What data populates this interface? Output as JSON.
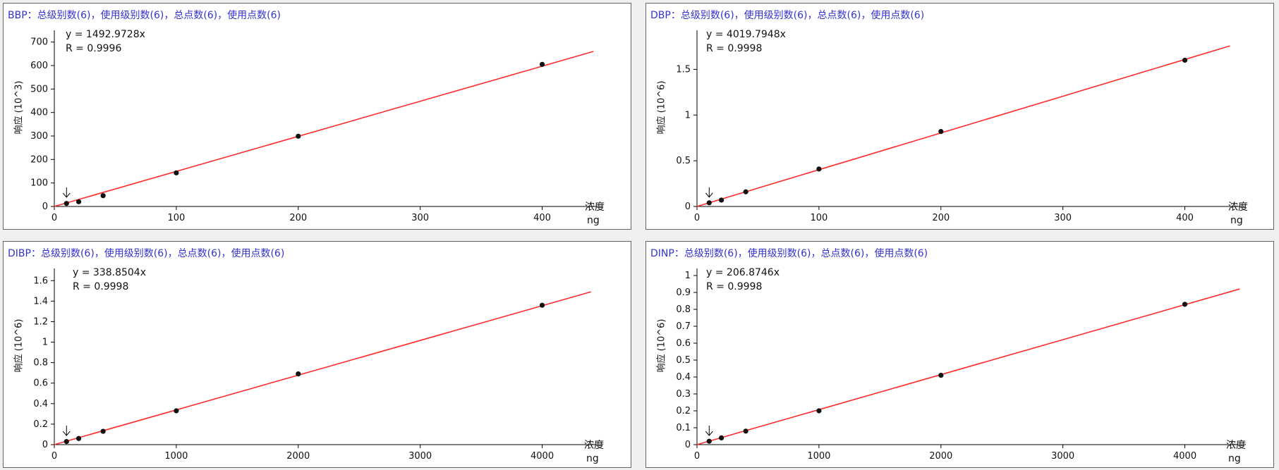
{
  "colors": {
    "fit_line": "#ff2a2a",
    "point": "#111111",
    "title": "#3333cc",
    "axis": "#000000"
  },
  "chart_data": [
    {
      "type": "scatter",
      "title": "BBP：总级别数(6)，使用级别数(6)，总点数(6)，使用点数(6)",
      "equation": "y = 1492.9728x",
      "r_value": "R = 0.9996",
      "ylabel": "响应 (10^3)",
      "xlabel": "浓度",
      "xunit": "ng",
      "xlim": [
        0,
        450
      ],
      "ylim": [
        0,
        720
      ],
      "xticks": [
        0,
        100,
        200,
        300,
        400
      ],
      "xtick_labels": [
        "0",
        "100",
        "200",
        "300",
        "400"
      ],
      "yticks": [
        0,
        100,
        200,
        300,
        400,
        500,
        600,
        700
      ],
      "ytick_labels": [
        "0",
        "100",
        "200",
        "300",
        "400",
        "500",
        "600",
        "700"
      ],
      "points": {
        "x": [
          10,
          20,
          40,
          100,
          200,
          400
        ],
        "y": [
          13,
          20,
          46,
          143,
          299,
          605
        ]
      },
      "fit_line": {
        "slope": 1.4929728,
        "x_end": 442
      },
      "marker_x": 10
    },
    {
      "type": "scatter",
      "title": "DBP：总级别数(6)，使用级别数(6)，总点数(6)，使用点数(6)",
      "equation": "y = 4019.7948x",
      "r_value": "R = 0.9998",
      "ylabel": "响应 (10^6)",
      "xlabel": "浓度",
      "xunit": "ng",
      "xlim": [
        0,
        450
      ],
      "ylim": [
        0,
        1.85
      ],
      "xticks": [
        0,
        100,
        200,
        300,
        400
      ],
      "xtick_labels": [
        "0",
        "100",
        "200",
        "300",
        "400"
      ],
      "yticks": [
        0,
        0.5,
        1,
        1.5
      ],
      "ytick_labels": [
        "0",
        "0.5",
        "1",
        "1.5"
      ],
      "points": {
        "x": [
          10,
          20,
          40,
          100,
          200,
          400
        ],
        "y": [
          0.04,
          0.07,
          0.16,
          0.41,
          0.82,
          1.6
        ]
      },
      "fit_line": {
        "slope": 0.0040197948,
        "x_end": 437
      },
      "marker_x": 10
    },
    {
      "type": "scatter",
      "title": "DIBP：总级别数(6)，使用级别数(6)，总点数(6)，使用点数(6)",
      "equation": "y = 338.8504x",
      "r_value": "R = 0.9998",
      "ylabel": "响应 (10^6)",
      "xlabel": "浓度",
      "xunit": "ng",
      "xlim": [
        0,
        4500
      ],
      "ylim": [
        0,
        1.65
      ],
      "xticks": [
        0,
        1000,
        2000,
        3000,
        4000
      ],
      "xtick_labels": [
        "0",
        "1000",
        "2000",
        "3000",
        "4000"
      ],
      "yticks": [
        0,
        0.2,
        0.4,
        0.6,
        0.8,
        1,
        1.2,
        1.4,
        1.6
      ],
      "ytick_labels": [
        "0",
        "0.2",
        "0.4",
        "0.6",
        "0.8",
        "1",
        "1.2",
        "1.4",
        "1.6"
      ],
      "points": {
        "x": [
          100,
          200,
          400,
          1000,
          2000,
          4000
        ],
        "y": [
          0.03,
          0.06,
          0.13,
          0.33,
          0.69,
          1.36
        ]
      },
      "fit_line": {
        "slope": 0.0003388504,
        "x_end": 4400
      },
      "marker_x": 100
    },
    {
      "type": "scatter",
      "title": "DINP：总级别数(6)，使用级别数(6)，总点数(6)，使用点数(6)",
      "equation": "y = 206.8746x",
      "r_value": "R = 0.9998",
      "ylabel": "响应 (10^6)",
      "xlabel": "浓度",
      "xunit": "ng",
      "xlim": [
        0,
        4500
      ],
      "ylim": [
        0,
        1.0
      ],
      "xticks": [
        0,
        1000,
        2000,
        3000,
        4000
      ],
      "xtick_labels": [
        "0",
        "1000",
        "2000",
        "3000",
        "4000"
      ],
      "yticks": [
        0,
        0.1,
        0.2,
        0.3,
        0.4,
        0.5,
        0.6,
        0.7,
        0.8,
        0.9,
        1
      ],
      "ytick_labels": [
        "0",
        "0.1",
        "0.2",
        "0.3",
        "0.4",
        "0.5",
        "0.6",
        "0.7",
        "0.8",
        "0.9",
        "1"
      ],
      "points": {
        "x": [
          100,
          200,
          400,
          1000,
          2000,
          4000
        ],
        "y": [
          0.02,
          0.04,
          0.08,
          0.2,
          0.41,
          0.83
        ]
      },
      "fit_line": {
        "slope": 0.0002068746,
        "x_end": 4450
      },
      "marker_x": 100
    }
  ]
}
